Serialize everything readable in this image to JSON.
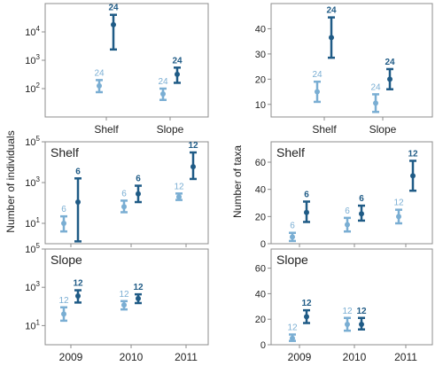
{
  "colors": {
    "light": "#7aaed3",
    "dark": "#1f5b86",
    "frame": "#8c8c8c"
  },
  "chart_data": [
    {
      "type": "errorbar",
      "id": "top-left",
      "yscale": "log",
      "ylim": [
        10,
        100000
      ],
      "categories": [
        "Shelf",
        "Slope"
      ],
      "ytick_labels": [
        "10^2",
        "10^3",
        "10^4"
      ],
      "yticks": [
        100,
        1000,
        10000
      ],
      "series": [
        {
          "points": [
            {
              "x": "Shelf",
              "mean": 125,
              "low": 75,
              "high": 200,
              "n": "24"
            },
            {
              "x": "Slope",
              "mean": 65,
              "low": 40,
              "high": 100,
              "n": "24"
            }
          ]
        },
        {
          "points": [
            {
              "x": "Shelf",
              "mean": 18000,
              "low": 2400,
              "high": 40000,
              "n": "24"
            },
            {
              "x": "Slope",
              "mean": 320,
              "low": 160,
              "high": 550,
              "n": "24"
            }
          ]
        }
      ]
    },
    {
      "type": "errorbar",
      "id": "top-right",
      "yscale": "linear",
      "ylim": [
        5,
        50
      ],
      "categories": [
        "Shelf",
        "Slope"
      ],
      "yticks": [
        10,
        20,
        30,
        40
      ],
      "series": [
        {
          "points": [
            {
              "x": "Shelf",
              "mean": 15,
              "low": 11,
              "high": 19,
              "n": "24"
            },
            {
              "x": "Slope",
              "mean": 10.5,
              "low": 7,
              "high": 14,
              "n": "24"
            }
          ]
        },
        {
          "points": [
            {
              "x": "Shelf",
              "mean": 36.5,
              "low": 28.5,
              "high": 44.5,
              "n": "24"
            },
            {
              "x": "Slope",
              "mean": 20,
              "low": 16,
              "high": 24,
              "n": "24"
            }
          ]
        }
      ]
    },
    {
      "type": "errorbar",
      "id": "mid-left",
      "yscale": "log",
      "ylim": [
        1,
        100000
      ],
      "panel_label": "Shelf",
      "categories": [
        "2009",
        "2010",
        "2011"
      ],
      "ytick_labels": [
        "10^1",
        "10^3",
        "10^5"
      ],
      "yticks": [
        10,
        1000,
        100000
      ],
      "series": [
        {
          "points": [
            {
              "x": "2009",
              "mean": 10,
              "low": 4,
              "high": 22,
              "n": "6"
            },
            {
              "x": "2010",
              "mean": 65,
              "low": 35,
              "high": 130,
              "n": "6"
            },
            {
              "x": "2011",
              "mean": 200,
              "low": 140,
              "high": 290,
              "n": "12"
            }
          ]
        },
        {
          "points": [
            {
              "x": "2009",
              "mean": 110,
              "low": 1.3,
              "high": 1600,
              "n": "6"
            },
            {
              "x": "2010",
              "mean": 280,
              "low": 110,
              "high": 700,
              "n": "6"
            },
            {
              "x": "2011",
              "mean": 6000,
              "low": 1500,
              "high": 30000,
              "n": "12"
            }
          ]
        }
      ]
    },
    {
      "type": "errorbar",
      "id": "mid-right",
      "yscale": "linear",
      "ylim": [
        0,
        75
      ],
      "panel_label": "Shelf",
      "categories": [
        "2009",
        "2010",
        "2011"
      ],
      "yticks": [
        0,
        20,
        40,
        60
      ],
      "series": [
        {
          "points": [
            {
              "x": "2009",
              "mean": 5,
              "low": 2,
              "high": 8,
              "n": "6"
            },
            {
              "x": "2010",
              "mean": 14,
              "low": 9,
              "high": 19,
              "n": "6"
            },
            {
              "x": "2011",
              "mean": 20,
              "low": 15,
              "high": 25,
              "n": "12"
            }
          ]
        },
        {
          "points": [
            {
              "x": "2009",
              "mean": 23,
              "low": 16,
              "high": 31,
              "n": "6"
            },
            {
              "x": "2010",
              "mean": 22,
              "low": 17,
              "high": 28,
              "n": "6"
            },
            {
              "x": "2011",
              "mean": 50,
              "low": 39,
              "high": 61,
              "n": "12"
            }
          ]
        }
      ]
    },
    {
      "type": "errorbar",
      "id": "bottom-left",
      "yscale": "log",
      "ylim": [
        1,
        100000
      ],
      "panel_label": "Slope",
      "categories": [
        "2009",
        "2010",
        "2011"
      ],
      "ytick_labels": [
        "10^1",
        "10^3",
        "10^5"
      ],
      "yticks": [
        10,
        1000,
        100000
      ],
      "series": [
        {
          "points": [
            {
              "x": "2009",
              "mean": 40,
              "low": 18,
              "high": 90,
              "n": "12"
            },
            {
              "x": "2010",
              "mean": 120,
              "low": 70,
              "high": 190,
              "n": "12"
            }
          ]
        },
        {
          "points": [
            {
              "x": "2009",
              "mean": 350,
              "low": 160,
              "high": 700,
              "n": "12"
            },
            {
              "x": "2010",
              "mean": 260,
              "low": 150,
              "high": 430,
              "n": "12"
            }
          ]
        }
      ]
    },
    {
      "type": "errorbar",
      "id": "bottom-right",
      "yscale": "linear",
      "ylim": [
        0,
        75
      ],
      "panel_label": "Slope",
      "categories": [
        "2009",
        "2010",
        "2011"
      ],
      "yticks": [
        0,
        20,
        40,
        60
      ],
      "series": [
        {
          "points": [
            {
              "x": "2009",
              "mean": 5,
              "low": 3,
              "high": 8,
              "n": "12"
            },
            {
              "x": "2010",
              "mean": 16,
              "low": 11,
              "high": 21,
              "n": "12"
            }
          ]
        },
        {
          "points": [
            {
              "x": "2009",
              "mean": 22,
              "low": 17,
              "high": 27,
              "n": "12"
            },
            {
              "x": "2010",
              "mean": 16,
              "low": 12,
              "high": 21,
              "n": "12"
            }
          ]
        }
      ]
    }
  ],
  "axis_titles": {
    "left_y": "Number of individuals",
    "right_y": "Number of taxa"
  }
}
